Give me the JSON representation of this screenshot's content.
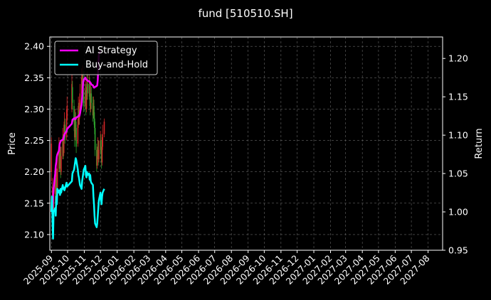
{
  "chart_data": {
    "type": "line",
    "title": "fund [510510.SH]",
    "ylabel_left": "Price",
    "ylabel_right": "Return",
    "ylim_left": [
      2.075,
      2.415
    ],
    "ylim_right": [
      0.95,
      1.228
    ],
    "yticks_left": [
      "2.10",
      "2.15",
      "2.20",
      "2.25",
      "2.30",
      "2.35",
      "2.40"
    ],
    "yticks_right": [
      "0.95",
      "1.00",
      "1.05",
      "1.10",
      "1.15",
      "1.20"
    ],
    "x_tick_labels": [
      "2025-09",
      "2025-10",
      "2025-11",
      "2025-12",
      "2026-01",
      "2026-02",
      "2026-03",
      "2026-04",
      "2026-05",
      "2026-06",
      "2026-07",
      "2026-08",
      "2026-09",
      "2026-10",
      "2026-11",
      "2026-12",
      "2027-01",
      "2027-02",
      "2027-03",
      "2027-04",
      "2027-05",
      "2027-06",
      "2027-07",
      "2027-08"
    ],
    "x_range": [
      "2025-08-29",
      "2027-08-28"
    ],
    "grid": true,
    "legend_placement": "top-left",
    "colors": {
      "background": "#000000",
      "up_candle": "#d62728",
      "down_candle": "#2ca02c",
      "ai_strategy": "#ff00ff",
      "buy_and_hold": "#00ffff"
    },
    "candles": [
      {
        "date": "2025-09-01",
        "open": 2.2,
        "close": 2.245,
        "high": 2.255,
        "low": 2.185
      },
      {
        "date": "2025-09-03",
        "open": 2.15,
        "close": 2.175,
        "high": 2.19,
        "low": 2.125
      },
      {
        "date": "2025-09-04",
        "open": 2.11,
        "close": 2.135,
        "high": 2.15,
        "low": 2.095
      },
      {
        "date": "2025-09-05",
        "open": 2.14,
        "close": 2.17,
        "high": 2.18,
        "low": 2.13
      },
      {
        "date": "2025-09-08",
        "open": 2.165,
        "close": 2.185,
        "high": 2.195,
        "low": 2.15
      },
      {
        "date": "2025-09-09",
        "open": 2.18,
        "close": 2.16,
        "high": 2.19,
        "low": 2.15
      },
      {
        "date": "2025-09-10",
        "open": 2.165,
        "close": 2.2,
        "high": 2.215,
        "low": 2.16
      },
      {
        "date": "2025-09-11",
        "open": 2.19,
        "close": 2.17,
        "high": 2.205,
        "low": 2.165
      },
      {
        "date": "2025-09-12",
        "open": 2.175,
        "close": 2.205,
        "high": 2.225,
        "low": 2.17
      },
      {
        "date": "2025-09-15",
        "open": 2.205,
        "close": 2.24,
        "high": 2.255,
        "low": 2.2
      },
      {
        "date": "2025-09-16",
        "open": 2.235,
        "close": 2.21,
        "high": 2.245,
        "low": 2.2
      },
      {
        "date": "2025-09-17",
        "open": 2.21,
        "close": 2.235,
        "high": 2.25,
        "low": 2.205
      },
      {
        "date": "2025-09-18",
        "open": 2.23,
        "close": 2.2,
        "high": 2.24,
        "low": 2.19
      },
      {
        "date": "2025-09-19",
        "open": 2.2,
        "close": 2.225,
        "high": 2.24,
        "low": 2.195
      },
      {
        "date": "2025-09-22",
        "open": 2.225,
        "close": 2.255,
        "high": 2.27,
        "low": 2.22
      },
      {
        "date": "2025-09-23",
        "open": 2.25,
        "close": 2.23,
        "high": 2.26,
        "low": 2.22
      },
      {
        "date": "2025-09-24",
        "open": 2.23,
        "close": 2.26,
        "high": 2.275,
        "low": 2.225
      },
      {
        "date": "2025-09-25",
        "open": 2.255,
        "close": 2.28,
        "high": 2.295,
        "low": 2.25
      },
      {
        "date": "2025-09-26",
        "open": 2.275,
        "close": 2.25,
        "high": 2.285,
        "low": 2.245
      },
      {
        "date": "2025-09-29",
        "open": 2.255,
        "close": 2.285,
        "high": 2.3,
        "low": 2.25
      },
      {
        "date": "2025-09-30",
        "open": 2.285,
        "close": 2.305,
        "high": 2.32,
        "low": 2.28
      },
      {
        "date": "2025-10-09",
        "open": 2.3,
        "close": 2.34,
        "high": 2.355,
        "low": 2.295
      },
      {
        "date": "2025-10-10",
        "open": 2.335,
        "close": 2.31,
        "high": 2.345,
        "low": 2.3
      },
      {
        "date": "2025-10-13",
        "open": 2.305,
        "close": 2.28,
        "high": 2.315,
        "low": 2.265
      },
      {
        "date": "2025-10-14",
        "open": 2.28,
        "close": 2.255,
        "high": 2.29,
        "low": 2.24
      },
      {
        "date": "2025-10-15",
        "open": 2.255,
        "close": 2.285,
        "high": 2.3,
        "low": 2.25
      },
      {
        "date": "2025-10-16",
        "open": 2.285,
        "close": 2.27,
        "high": 2.295,
        "low": 2.26
      },
      {
        "date": "2025-10-17",
        "open": 2.27,
        "close": 2.24,
        "high": 2.28,
        "low": 2.23
      },
      {
        "date": "2025-10-20",
        "open": 2.245,
        "close": 2.275,
        "high": 2.285,
        "low": 2.24
      },
      {
        "date": "2025-10-21",
        "open": 2.275,
        "close": 2.305,
        "high": 2.32,
        "low": 2.27
      },
      {
        "date": "2025-10-22",
        "open": 2.3,
        "close": 2.285,
        "high": 2.31,
        "low": 2.275
      },
      {
        "date": "2025-10-23",
        "open": 2.285,
        "close": 2.3,
        "high": 2.315,
        "low": 2.275
      },
      {
        "date": "2025-10-24",
        "open": 2.3,
        "close": 2.325,
        "high": 2.34,
        "low": 2.295
      },
      {
        "date": "2025-10-27",
        "open": 2.325,
        "close": 2.35,
        "high": 2.365,
        "low": 2.32
      },
      {
        "date": "2025-10-28",
        "open": 2.345,
        "close": 2.33,
        "high": 2.355,
        "low": 2.32
      },
      {
        "date": "2025-10-29",
        "open": 2.335,
        "close": 2.355,
        "high": 2.37,
        "low": 2.33
      },
      {
        "date": "2025-10-30",
        "open": 2.35,
        "close": 2.32,
        "high": 2.36,
        "low": 2.31
      },
      {
        "date": "2025-10-31",
        "open": 2.32,
        "close": 2.305,
        "high": 2.33,
        "low": 2.295
      },
      {
        "date": "2025-11-03",
        "open": 2.305,
        "close": 2.33,
        "high": 2.345,
        "low": 2.3
      },
      {
        "date": "2025-11-04",
        "open": 2.33,
        "close": 2.3,
        "high": 2.34,
        "low": 2.29
      },
      {
        "date": "2025-11-05",
        "open": 2.3,
        "close": 2.32,
        "high": 2.335,
        "low": 2.295
      },
      {
        "date": "2025-11-06",
        "open": 2.32,
        "close": 2.345,
        "high": 2.36,
        "low": 2.315
      },
      {
        "date": "2025-11-07",
        "open": 2.34,
        "close": 2.325,
        "high": 2.355,
        "low": 2.315
      },
      {
        "date": "2025-11-10",
        "open": 2.325,
        "close": 2.34,
        "high": 2.355,
        "low": 2.32
      },
      {
        "date": "2025-11-11",
        "open": 2.34,
        "close": 2.315,
        "high": 2.35,
        "low": 2.305
      },
      {
        "date": "2025-11-12",
        "open": 2.315,
        "close": 2.3,
        "high": 2.325,
        "low": 2.29
      },
      {
        "date": "2025-11-13",
        "open": 2.3,
        "close": 2.325,
        "high": 2.34,
        "low": 2.295
      },
      {
        "date": "2025-11-14",
        "open": 2.325,
        "close": 2.31,
        "high": 2.335,
        "low": 2.3
      },
      {
        "date": "2025-11-17",
        "open": 2.31,
        "close": 2.29,
        "high": 2.32,
        "low": 2.28
      },
      {
        "date": "2025-11-18",
        "open": 2.29,
        "close": 2.305,
        "high": 2.32,
        "low": 2.285
      },
      {
        "date": "2025-11-19",
        "open": 2.305,
        "close": 2.285,
        "high": 2.315,
        "low": 2.275
      },
      {
        "date": "2025-11-20",
        "open": 2.285,
        "close": 2.27,
        "high": 2.295,
        "low": 2.26
      },
      {
        "date": "2025-11-21",
        "open": 2.27,
        "close": 2.235,
        "high": 2.28,
        "low": 2.225
      },
      {
        "date": "2025-11-24",
        "open": 2.235,
        "close": 2.21,
        "high": 2.245,
        "low": 2.2
      },
      {
        "date": "2025-11-25",
        "open": 2.21,
        "close": 2.225,
        "high": 2.24,
        "low": 2.205
      },
      {
        "date": "2025-11-26",
        "open": 2.225,
        "close": 2.24,
        "high": 2.255,
        "low": 2.22
      },
      {
        "date": "2025-11-27",
        "open": 2.24,
        "close": 2.22,
        "high": 2.25,
        "low": 2.21
      },
      {
        "date": "2025-11-28",
        "open": 2.22,
        "close": 2.235,
        "high": 2.25,
        "low": 2.215
      },
      {
        "date": "2025-12-01",
        "open": 2.235,
        "close": 2.25,
        "high": 2.265,
        "low": 2.23
      },
      {
        "date": "2025-12-02",
        "open": 2.25,
        "close": 2.23,
        "high": 2.26,
        "low": 2.22
      },
      {
        "date": "2025-12-03",
        "open": 2.23,
        "close": 2.215,
        "high": 2.24,
        "low": 2.205
      },
      {
        "date": "2025-12-04",
        "open": 2.215,
        "close": 2.24,
        "high": 2.255,
        "low": 2.21
      },
      {
        "date": "2025-12-05",
        "open": 2.24,
        "close": 2.26,
        "high": 2.275,
        "low": 2.235
      },
      {
        "date": "2025-12-08",
        "open": 2.26,
        "close": 2.28,
        "high": 2.285,
        "low": 2.255
      }
    ],
    "series": [
      {
        "name": "AI Strategy",
        "color": "#ff00ff",
        "points": [
          [
            "2025-09-01",
            1.0
          ],
          [
            "2025-09-03",
            1.005
          ],
          [
            "2025-09-04",
            1.02
          ],
          [
            "2025-09-05",
            1.03
          ],
          [
            "2025-09-08",
            1.05
          ],
          [
            "2025-09-09",
            1.06
          ],
          [
            "2025-09-10",
            1.065
          ],
          [
            "2025-09-11",
            1.072
          ],
          [
            "2025-09-12",
            1.075
          ],
          [
            "2025-09-15",
            1.08
          ],
          [
            "2025-09-16",
            1.088
          ],
          [
            "2025-09-17",
            1.09
          ],
          [
            "2025-09-18",
            1.092
          ],
          [
            "2025-09-19",
            1.093
          ],
          [
            "2025-09-22",
            1.094
          ],
          [
            "2025-09-23",
            1.095
          ],
          [
            "2025-09-24",
            1.098
          ],
          [
            "2025-09-25",
            1.1
          ],
          [
            "2025-09-26",
            1.102
          ],
          [
            "2025-09-29",
            1.105
          ],
          [
            "2025-09-30",
            1.108
          ],
          [
            "2025-10-09",
            1.115
          ],
          [
            "2025-10-10",
            1.12
          ],
          [
            "2025-10-13",
            1.122
          ],
          [
            "2025-10-14",
            1.121
          ],
          [
            "2025-10-15",
            1.122
          ],
          [
            "2025-10-16",
            1.121
          ],
          [
            "2025-10-17",
            1.123
          ],
          [
            "2025-10-20",
            1.124
          ],
          [
            "2025-10-21",
            1.125
          ],
          [
            "2025-10-22",
            1.126
          ],
          [
            "2025-10-23",
            1.125
          ],
          [
            "2025-10-24",
            1.128
          ],
          [
            "2025-10-27",
            1.14
          ],
          [
            "2025-10-28",
            1.15
          ],
          [
            "2025-10-29",
            1.16
          ],
          [
            "2025-10-30",
            1.17
          ],
          [
            "2025-10-31",
            1.172
          ],
          [
            "2025-11-03",
            1.175
          ],
          [
            "2025-11-04",
            1.173
          ],
          [
            "2025-11-05",
            1.172
          ],
          [
            "2025-11-06",
            1.172
          ],
          [
            "2025-11-07",
            1.171
          ],
          [
            "2025-11-10",
            1.17
          ],
          [
            "2025-11-11",
            1.17
          ],
          [
            "2025-11-12",
            1.168
          ],
          [
            "2025-11-13",
            1.168
          ],
          [
            "2025-11-14",
            1.166
          ],
          [
            "2025-11-17",
            1.165
          ],
          [
            "2025-11-18",
            1.163
          ],
          [
            "2025-11-19",
            1.162
          ],
          [
            "2025-11-20",
            1.162
          ],
          [
            "2025-11-21",
            1.163
          ],
          [
            "2025-11-24",
            1.164
          ],
          [
            "2025-11-25",
            1.165
          ],
          [
            "2025-11-26",
            1.172
          ],
          [
            "2025-11-27",
            1.19
          ],
          [
            "2025-11-28",
            1.205
          ],
          [
            "2025-12-01",
            1.21
          ]
        ]
      },
      {
        "name": "Buy-and-Hold",
        "color": "#00ffff",
        "points": [
          [
            "2025-09-01",
            1.0
          ],
          [
            "2025-09-02",
            1.02
          ],
          [
            "2025-09-03",
            0.99
          ],
          [
            "2025-09-04",
            0.965
          ],
          [
            "2025-09-05",
            1.0
          ],
          [
            "2025-09-08",
            1.005
          ],
          [
            "2025-09-09",
            0.995
          ],
          [
            "2025-09-10",
            1.02
          ],
          [
            "2025-09-11",
            1.01
          ],
          [
            "2025-09-12",
            1.03
          ],
          [
            "2025-09-15",
            1.025
          ],
          [
            "2025-09-16",
            1.028
          ],
          [
            "2025-09-17",
            1.022
          ],
          [
            "2025-09-18",
            1.03
          ],
          [
            "2025-09-19",
            1.025
          ],
          [
            "2025-09-22",
            1.035
          ],
          [
            "2025-09-23",
            1.03
          ],
          [
            "2025-09-24",
            1.032
          ],
          [
            "2025-09-25",
            1.028
          ],
          [
            "2025-09-26",
            1.03
          ],
          [
            "2025-09-29",
            1.038
          ],
          [
            "2025-09-30",
            1.033
          ],
          [
            "2025-10-09",
            1.04
          ],
          [
            "2025-10-10",
            1.05
          ],
          [
            "2025-10-13",
            1.055
          ],
          [
            "2025-10-14",
            1.06
          ],
          [
            "2025-10-15",
            1.065
          ],
          [
            "2025-10-16",
            1.07
          ],
          [
            "2025-10-17",
            1.068
          ],
          [
            "2025-10-20",
            1.055
          ],
          [
            "2025-10-21",
            1.048
          ],
          [
            "2025-10-22",
            1.045
          ],
          [
            "2025-10-23",
            1.04
          ],
          [
            "2025-10-24",
            1.035
          ],
          [
            "2025-10-27",
            1.03
          ],
          [
            "2025-10-28",
            1.04
          ],
          [
            "2025-10-29",
            1.045
          ],
          [
            "2025-10-30",
            1.05
          ],
          [
            "2025-10-31",
            1.055
          ],
          [
            "2025-11-03",
            1.06
          ],
          [
            "2025-11-04",
            1.048
          ],
          [
            "2025-11-05",
            1.045
          ],
          [
            "2025-11-06",
            1.052
          ],
          [
            "2025-11-07",
            1.048
          ],
          [
            "2025-11-10",
            1.05
          ],
          [
            "2025-11-11",
            1.042
          ],
          [
            "2025-11-12",
            1.048
          ],
          [
            "2025-11-13",
            1.04
          ],
          [
            "2025-11-14",
            1.038
          ],
          [
            "2025-11-17",
            1.035
          ],
          [
            "2025-11-18",
            1.02
          ],
          [
            "2025-11-19",
            1.01
          ],
          [
            "2025-11-20",
            0.995
          ],
          [
            "2025-11-21",
            0.985
          ],
          [
            "2025-11-24",
            0.98
          ],
          [
            "2025-11-25",
            0.985
          ],
          [
            "2025-11-26",
            0.995
          ],
          [
            "2025-11-27",
            1.005
          ],
          [
            "2025-11-28",
            1.015
          ],
          [
            "2025-12-01",
            1.025
          ],
          [
            "2025-12-02",
            1.015
          ],
          [
            "2025-12-03",
            1.01
          ],
          [
            "2025-12-04",
            1.02
          ],
          [
            "2025-12-05",
            1.025
          ],
          [
            "2025-12-08",
            1.03
          ]
        ]
      }
    ]
  }
}
